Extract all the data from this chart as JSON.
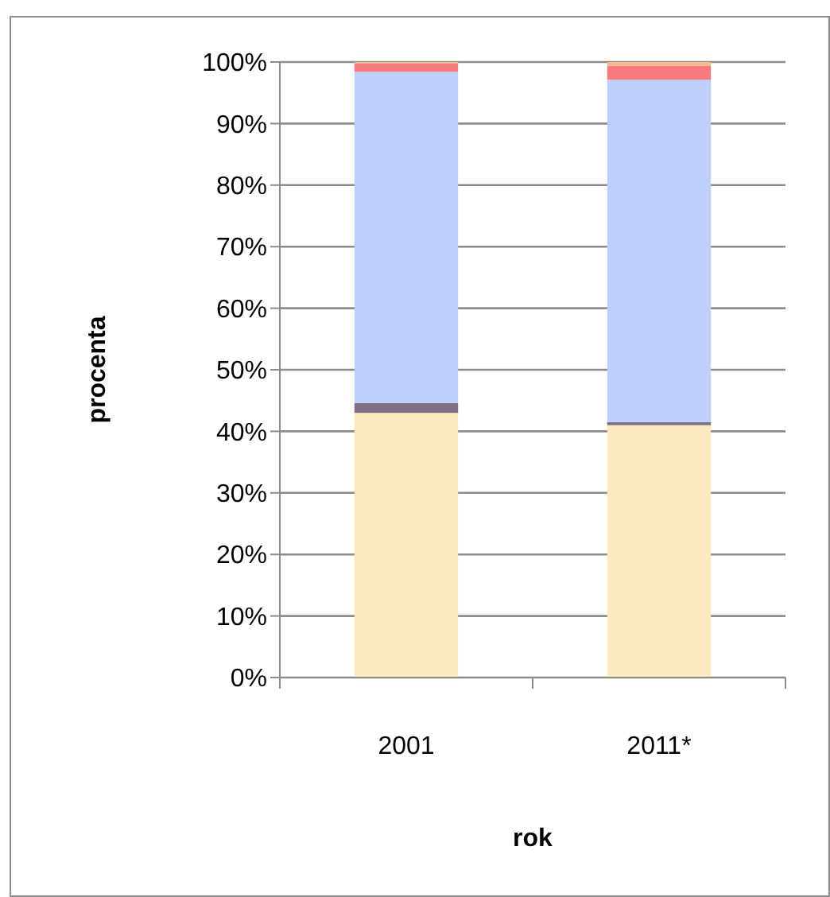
{
  "chart_data": {
    "type": "bar",
    "stacked": true,
    "xlabel": "rok",
    "ylabel": "procenta",
    "categories": [
      "2001",
      "2011*"
    ],
    "series": [
      {
        "color": "#fde9bf",
        "values": [
          43.0,
          41.0
        ]
      },
      {
        "color": "#7f6f86",
        "values": [
          1.6,
          0.5
        ]
      },
      {
        "color": "#bdd0fd",
        "values": [
          53.8,
          55.6
        ]
      },
      {
        "color": "#f77b7b",
        "values": [
          1.4,
          2.3
        ]
      },
      {
        "color": "#f4b88a",
        "values": [
          0.2,
          0.6
        ]
      }
    ],
    "ylim": [
      0,
      100
    ],
    "yticks": [
      {
        "value": 0,
        "label": "0%"
      },
      {
        "value": 10,
        "label": "10%"
      },
      {
        "value": 20,
        "label": "20%"
      },
      {
        "value": 30,
        "label": "30%"
      },
      {
        "value": 40,
        "label": "40%"
      },
      {
        "value": 50,
        "label": "50%"
      },
      {
        "value": 60,
        "label": "60%"
      },
      {
        "value": 70,
        "label": "70%"
      },
      {
        "value": 80,
        "label": "80%"
      },
      {
        "value": 90,
        "label": "90%"
      },
      {
        "value": 100,
        "label": "100%"
      }
    ],
    "grid": "y"
  }
}
